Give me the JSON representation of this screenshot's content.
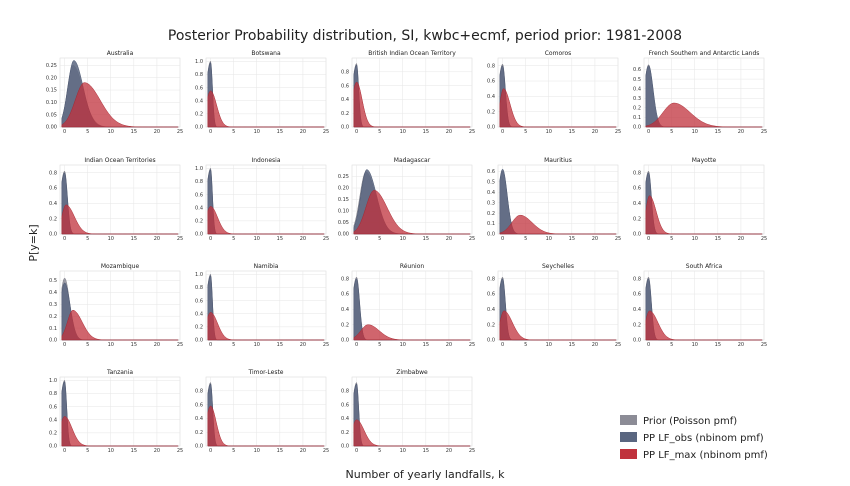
{
  "figure": {
    "title": "Posterior Probability distribution, SI, kwbc+ecmf, period prior: 1981-2008",
    "xlabel": "Number of yearly landfalls, k",
    "ylabel": "P[y=k]"
  },
  "legend": {
    "placement": "lower-right",
    "items": [
      {
        "label": "Prior (Poisson pmf)",
        "color": "#8c8c96"
      },
      {
        "label": "PP LF_obs (nbinom pmf)",
        "color": "#5a6680"
      },
      {
        "label": "PP LF_max (nbinom pmf)",
        "color": "#c0323c"
      }
    ]
  },
  "chart_data": {
    "type": "area",
    "grid": true,
    "xlim": [
      -1,
      25
    ],
    "xticks": [
      0,
      5,
      10,
      15,
      20,
      25
    ],
    "series_names": [
      "Prior (Poisson pmf)",
      "PP LF_obs (nbinom pmf)",
      "PP LF_max (nbinom pmf)"
    ],
    "panels": [
      {
        "name": "Australia",
        "ylim": [
          0,
          0.28
        ],
        "yticks": [
          "0.00",
          "0.05",
          "0.10",
          "0.15",
          "0.20",
          "0.25"
        ],
        "dists": [
          {
            "mode": 1.8,
            "peak": 0.25,
            "sl": 1.2,
            "sr": 2.2
          },
          {
            "mode": 2.0,
            "peak": 0.27,
            "sl": 1.3,
            "sr": 2.0
          },
          {
            "mode": 4.3,
            "peak": 0.18,
            "sl": 2.0,
            "sr": 3.4
          }
        ]
      },
      {
        "name": "Botswana",
        "ylim": [
          0,
          1.05
        ],
        "yticks": [
          "0.0",
          "0.2",
          "0.4",
          "0.6",
          "0.8",
          "1.0"
        ],
        "dists": [
          {
            "mode": 0,
            "peak": 1.0,
            "sl": 1,
            "sr": 0.4
          },
          {
            "mode": 0,
            "peak": 0.98,
            "sl": 1,
            "sr": 0.4
          },
          {
            "mode": 0,
            "peak": 0.55,
            "sl": 1,
            "sr": 1.3
          }
        ]
      },
      {
        "name": "British Indian Ocean Territory",
        "ylim": [
          0,
          1.0
        ],
        "yticks": [
          "0.0",
          "0.2",
          "0.4",
          "0.6",
          "0.8"
        ],
        "dists": [
          {
            "mode": 0,
            "peak": 0.92,
            "sl": 1,
            "sr": 0.45
          },
          {
            "mode": 0,
            "peak": 0.9,
            "sl": 1,
            "sr": 0.45
          },
          {
            "mode": 0,
            "peak": 0.65,
            "sl": 1,
            "sr": 1.2
          }
        ]
      },
      {
        "name": "Comoros",
        "ylim": [
          0,
          0.9
        ],
        "yticks": [
          "0.0",
          "0.2",
          "0.4",
          "0.6",
          "0.8"
        ],
        "dists": [
          {
            "mode": 0,
            "peak": 0.82,
            "sl": 1,
            "sr": 0.6
          },
          {
            "mode": 0,
            "peak": 0.8,
            "sl": 1,
            "sr": 0.6
          },
          {
            "mode": 0.2,
            "peak": 0.5,
            "sl": 0.8,
            "sr": 1.4
          }
        ]
      },
      {
        "name": "French Southern and Antarctic Lands",
        "ylim": [
          0,
          0.72
        ],
        "yticks": [
          "0.0",
          "0.1",
          "0.2",
          "0.3",
          "0.4",
          "0.5",
          "0.6"
        ],
        "dists": [
          {
            "mode": 0,
            "peak": 0.65,
            "sl": 1,
            "sr": 0.9
          },
          {
            "mode": 0,
            "peak": 0.64,
            "sl": 1,
            "sr": 1.0
          },
          {
            "mode": 5.5,
            "peak": 0.25,
            "sl": 2.4,
            "sr": 3.5
          }
        ]
      },
      {
        "name": "Indian Ocean Territories",
        "ylim": [
          0,
          0.9
        ],
        "yticks": [
          "0.0",
          "0.2",
          "0.4",
          "0.6",
          "0.8"
        ],
        "dists": [
          {
            "mode": 0,
            "peak": 0.82,
            "sl": 1,
            "sr": 0.6
          },
          {
            "mode": 0,
            "peak": 0.8,
            "sl": 1,
            "sr": 0.6
          },
          {
            "mode": 0.3,
            "peak": 0.38,
            "sl": 0.9,
            "sr": 1.8
          }
        ]
      },
      {
        "name": "Indonesia",
        "ylim": [
          0,
          1.05
        ],
        "yticks": [
          "0.0",
          "0.2",
          "0.4",
          "0.6",
          "0.8",
          "1.0"
        ],
        "dists": [
          {
            "mode": 0,
            "peak": 1.0,
            "sl": 1,
            "sr": 0.4
          },
          {
            "mode": 0,
            "peak": 0.98,
            "sl": 1,
            "sr": 0.4
          },
          {
            "mode": 0,
            "peak": 0.42,
            "sl": 1,
            "sr": 1.5
          }
        ]
      },
      {
        "name": "Madagascar",
        "ylim": [
          0,
          0.3
        ],
        "yticks": [
          "0.00",
          "0.05",
          "0.10",
          "0.15",
          "0.20",
          "0.25"
        ],
        "dists": [
          {
            "mode": 2.0,
            "peak": 0.27,
            "sl": 1.3,
            "sr": 2.2
          },
          {
            "mode": 2.2,
            "peak": 0.28,
            "sl": 1.3,
            "sr": 2.1
          },
          {
            "mode": 3.8,
            "peak": 0.19,
            "sl": 1.8,
            "sr": 2.8
          }
        ]
      },
      {
        "name": "Mauritius",
        "ylim": [
          0,
          0.66
        ],
        "yticks": [
          "0.0",
          "0.1",
          "0.2",
          "0.3",
          "0.4",
          "0.5",
          "0.6"
        ],
        "dists": [
          {
            "mode": 0,
            "peak": 0.6,
            "sl": 1,
            "sr": 1.0
          },
          {
            "mode": 0,
            "peak": 0.62,
            "sl": 1,
            "sr": 1.0
          },
          {
            "mode": 3.8,
            "peak": 0.18,
            "sl": 1.8,
            "sr": 2.6
          }
        ]
      },
      {
        "name": "Mayotte",
        "ylim": [
          0,
          0.9
        ],
        "yticks": [
          "0.0",
          "0.2",
          "0.4",
          "0.6",
          "0.8"
        ],
        "dists": [
          {
            "mode": 0,
            "peak": 0.82,
            "sl": 1,
            "sr": 0.6
          },
          {
            "mode": 0,
            "peak": 0.8,
            "sl": 1,
            "sr": 0.6
          },
          {
            "mode": 0.2,
            "peak": 0.5,
            "sl": 0.8,
            "sr": 1.4
          }
        ]
      },
      {
        "name": "Mozambique",
        "ylim": [
          0,
          0.58
        ],
        "yticks": [
          "0.0",
          "0.1",
          "0.2",
          "0.3",
          "0.4",
          "0.5"
        ],
        "dists": [
          {
            "mode": 0,
            "peak": 0.52,
            "sl": 1,
            "sr": 1.1
          },
          {
            "mode": 0,
            "peak": 0.48,
            "sl": 1,
            "sr": 1.2
          },
          {
            "mode": 1.8,
            "peak": 0.25,
            "sl": 1.2,
            "sr": 2.0
          }
        ]
      },
      {
        "name": "Namibia",
        "ylim": [
          0,
          1.05
        ],
        "yticks": [
          "0.0",
          "0.2",
          "0.4",
          "0.6",
          "0.8",
          "1.0"
        ],
        "dists": [
          {
            "mode": 0,
            "peak": 1.0,
            "sl": 1,
            "sr": 0.4
          },
          {
            "mode": 0,
            "peak": 0.98,
            "sl": 1,
            "sr": 0.4
          },
          {
            "mode": 0,
            "peak": 0.42,
            "sl": 1,
            "sr": 1.5
          }
        ]
      },
      {
        "name": "Réunion",
        "ylim": [
          0,
          0.9
        ],
        "yticks": [
          "0.0",
          "0.2",
          "0.4",
          "0.6",
          "0.8"
        ],
        "dists": [
          {
            "mode": 0,
            "peak": 0.82,
            "sl": 1,
            "sr": 0.65
          },
          {
            "mode": 0,
            "peak": 0.8,
            "sl": 1,
            "sr": 0.65
          },
          {
            "mode": 2.5,
            "peak": 0.2,
            "sl": 1.6,
            "sr": 2.4
          }
        ]
      },
      {
        "name": "Seychelles",
        "ylim": [
          0,
          0.9
        ],
        "yticks": [
          "0.0",
          "0.2",
          "0.4",
          "0.6",
          "0.8"
        ],
        "dists": [
          {
            "mode": 0,
            "peak": 0.82,
            "sl": 1,
            "sr": 0.6
          },
          {
            "mode": 0,
            "peak": 0.8,
            "sl": 1,
            "sr": 0.6
          },
          {
            "mode": 0.3,
            "peak": 0.38,
            "sl": 0.9,
            "sr": 1.8
          }
        ]
      },
      {
        "name": "South Africa",
        "ylim": [
          0,
          0.9
        ],
        "yticks": [
          "0.0",
          "0.2",
          "0.4",
          "0.6",
          "0.8"
        ],
        "dists": [
          {
            "mode": 0,
            "peak": 0.82,
            "sl": 1,
            "sr": 0.6
          },
          {
            "mode": 0,
            "peak": 0.8,
            "sl": 1,
            "sr": 0.6
          },
          {
            "mode": 0.2,
            "peak": 0.38,
            "sl": 0.9,
            "sr": 1.8
          }
        ]
      },
      {
        "name": "Tanzania",
        "ylim": [
          0,
          1.05
        ],
        "yticks": [
          "0.0",
          "0.2",
          "0.4",
          "0.6",
          "0.8",
          "1.0"
        ],
        "dists": [
          {
            "mode": 0,
            "peak": 1.0,
            "sl": 1,
            "sr": 0.45
          },
          {
            "mode": 0,
            "peak": 0.98,
            "sl": 1,
            "sr": 0.45
          },
          {
            "mode": 0,
            "peak": 0.45,
            "sl": 1,
            "sr": 1.6
          }
        ]
      },
      {
        "name": "Timor-Leste",
        "ylim": [
          0,
          1.0
        ],
        "yticks": [
          "0.0",
          "0.2",
          "0.4",
          "0.6",
          "0.8"
        ],
        "dists": [
          {
            "mode": 0,
            "peak": 0.92,
            "sl": 1,
            "sr": 0.45
          },
          {
            "mode": 0,
            "peak": 0.9,
            "sl": 1,
            "sr": 0.45
          },
          {
            "mode": 0,
            "peak": 0.58,
            "sl": 1,
            "sr": 1.2
          }
        ]
      },
      {
        "name": "Zimbabwe",
        "ylim": [
          0,
          1.0
        ],
        "yticks": [
          "0.0",
          "0.2",
          "0.4",
          "0.6",
          "0.8"
        ],
        "dists": [
          {
            "mode": 0,
            "peak": 0.92,
            "sl": 1,
            "sr": 0.45
          },
          {
            "mode": 0,
            "peak": 0.9,
            "sl": 1,
            "sr": 0.45
          },
          {
            "mode": 0,
            "peak": 0.38,
            "sl": 1,
            "sr": 1.6
          }
        ]
      }
    ]
  }
}
